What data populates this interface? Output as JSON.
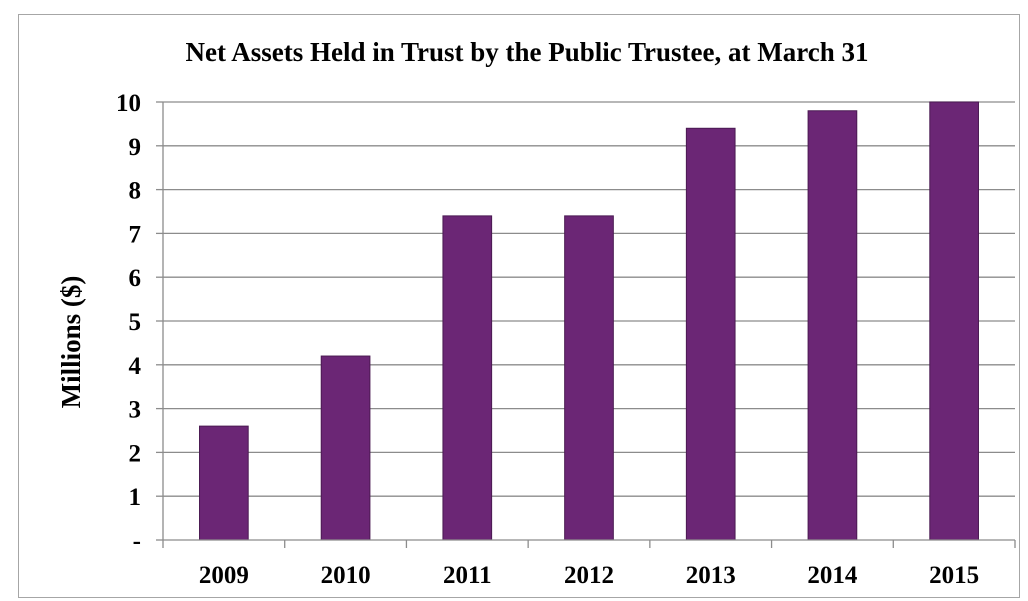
{
  "chart_data": {
    "type": "bar",
    "title": "Net Assets Held in Trust by the Public Trustee, at March 31",
    "xlabel": "",
    "ylabel": "Millions ($)",
    "categories": [
      "2009",
      "2010",
      "2011",
      "2012",
      "2013",
      "2014",
      "2015"
    ],
    "values": [
      2.6,
      4.2,
      7.4,
      7.4,
      9.4,
      9.8,
      10.0
    ],
    "ylim": [
      0,
      10
    ],
    "yticks": [
      "-",
      "1",
      "2",
      "3",
      "4",
      "5",
      "6",
      "7",
      "8",
      "9",
      "10"
    ],
    "grid": true,
    "legend": "none",
    "colors": {
      "bar_fill": "#6b2675",
      "bar_stroke": "#4a1a52",
      "grid": "#8c8c8c",
      "axis": "#8c8c8c"
    }
  }
}
